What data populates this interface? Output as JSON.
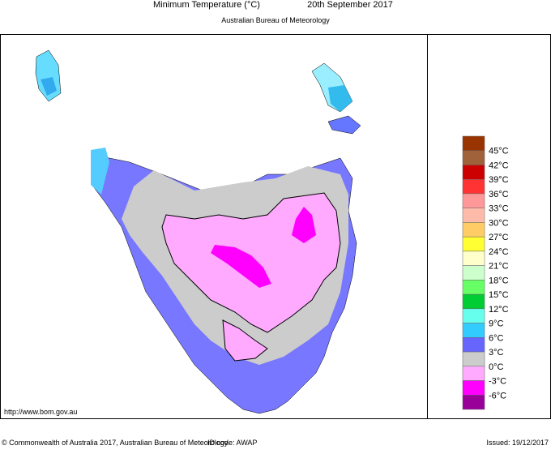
{
  "header": {
    "title": "Minimum Temperature (°C)",
    "date": "20th September 2017",
    "subtitle": "Australian Bureau of Meteorology"
  },
  "legend": {
    "colors": [
      "#993300",
      "#a0623a",
      "#cc0000",
      "#ff3333",
      "#ff9999",
      "#ffbbaa",
      "#ffcc66",
      "#ffff33",
      "#ffffcc",
      "#ccffcc",
      "#66ff66",
      "#00cc33",
      "#66ffee",
      "#33ccff",
      "#6666ff",
      "#cccccc",
      "#ffaaff",
      "#ff00ff",
      "#990099"
    ],
    "labels": [
      "45°C",
      "42°C",
      "39°C",
      "36°C",
      "33°C",
      "30°C",
      "27°C",
      "24°C",
      "21°C",
      "18°C",
      "15°C",
      "12°C",
      "9°C",
      "6°C",
      "3°C",
      "0°C",
      "-3°C",
      "-6°C"
    ]
  },
  "footer": {
    "url": "http://www.bom.gov.au",
    "copyright": "© Commonwealth of Australia 2017, Australian Bureau of Meteorology",
    "id_code": "ID code: AWAP",
    "issued": "Issued: 19/12/2017"
  }
}
